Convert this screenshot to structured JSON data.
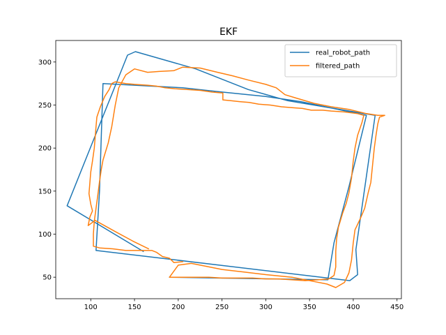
{
  "chart_data": {
    "type": "line",
    "title": "EKF",
    "xlabel": "",
    "ylabel": "",
    "xlim": [
      60,
      455
    ],
    "ylim": [
      25,
      325
    ],
    "xticks": [
      100,
      150,
      200,
      250,
      300,
      350,
      400,
      450
    ],
    "yticks": [
      50,
      100,
      150,
      200,
      250,
      300
    ],
    "grid": false,
    "legend_position": "top-right",
    "series": [
      {
        "name": "real_robot_path",
        "color": "#1f77b4",
        "points": [
          [
            160,
            80
          ],
          [
            73,
            133
          ],
          [
            142,
            308
          ],
          [
            151,
            312
          ],
          [
            220,
            292
          ],
          [
            280,
            268
          ],
          [
            325,
            255
          ],
          [
            425,
            238
          ],
          [
            403,
            82
          ],
          [
            405,
            53
          ],
          [
            396,
            46
          ],
          [
            106,
            81
          ],
          [
            110,
            150
          ],
          [
            114,
            275
          ],
          [
            205,
            270
          ],
          [
            251,
            265
          ],
          [
            300,
            260
          ],
          [
            340,
            254
          ],
          [
            415,
            238
          ],
          [
            395,
            155
          ],
          [
            378,
            90
          ],
          [
            371,
            47
          ],
          [
            190,
            50
          ]
        ]
      },
      {
        "name": "filtered_path",
        "color": "#ff7f0e",
        "points": [
          [
            166,
            83
          ],
          [
            148,
            92
          ],
          [
            128,
            103
          ],
          [
            105,
            116
          ],
          [
            97,
            110
          ],
          [
            99,
            120
          ],
          [
            102,
            127
          ],
          [
            100,
            135
          ],
          [
            98,
            147
          ],
          [
            99,
            160
          ],
          [
            100,
            172
          ],
          [
            102,
            185
          ],
          [
            104,
            200
          ],
          [
            105,
            212
          ],
          [
            106,
            225
          ],
          [
            107,
            236
          ],
          [
            111,
            248
          ],
          [
            116,
            260
          ],
          [
            121,
            268
          ],
          [
            124,
            275
          ],
          [
            128,
            277
          ],
          [
            140,
            275
          ],
          [
            150,
            274
          ],
          [
            165,
            273
          ],
          [
            175,
            272
          ],
          [
            185,
            270
          ],
          [
            196,
            269
          ],
          [
            210,
            268
          ],
          [
            225,
            267
          ],
          [
            239,
            265
          ],
          [
            251,
            264
          ],
          [
            251,
            256
          ],
          [
            260,
            255
          ],
          [
            270,
            254
          ],
          [
            281,
            253
          ],
          [
            292,
            251
          ],
          [
            305,
            250
          ],
          [
            318,
            248
          ],
          [
            330,
            247
          ],
          [
            342,
            246
          ],
          [
            352,
            244
          ],
          [
            365,
            244
          ],
          [
            375,
            243
          ],
          [
            390,
            242
          ],
          [
            405,
            240
          ],
          [
            412,
            238
          ],
          [
            410,
            230
          ],
          [
            405,
            215
          ],
          [
            402,
            200
          ],
          [
            400,
            185
          ],
          [
            398,
            165
          ],
          [
            395,
            148
          ],
          [
            392,
            136
          ],
          [
            388,
            125
          ],
          [
            383,
            108
          ],
          [
            381,
            95
          ],
          [
            380,
            80
          ],
          [
            380,
            62
          ],
          [
            378,
            52
          ],
          [
            372,
            48
          ],
          [
            360,
            47
          ],
          [
            345,
            46
          ],
          [
            330,
            47
          ],
          [
            315,
            48
          ],
          [
            300,
            48
          ],
          [
            285,
            49
          ],
          [
            268,
            49
          ],
          [
            250,
            49
          ],
          [
            235,
            50
          ],
          [
            220,
            50
          ],
          [
            205,
            50
          ],
          [
            190,
            50
          ],
          [
            200,
            64
          ],
          [
            215,
            66
          ],
          [
            230,
            63
          ],
          [
            250,
            59
          ],
          [
            275,
            56
          ],
          [
            300,
            53
          ],
          [
            330,
            50
          ],
          [
            355,
            45
          ],
          [
            370,
            42
          ],
          [
            380,
            38
          ],
          [
            390,
            44
          ],
          [
            395,
            55
          ],
          [
            398,
            70
          ],
          [
            400,
            90
          ],
          [
            402,
            105
          ],
          [
            408,
            118
          ],
          [
            413,
            130
          ],
          [
            417,
            148
          ],
          [
            420,
            160
          ],
          [
            422,
            180
          ],
          [
            424,
            200
          ],
          [
            426,
            215
          ],
          [
            428,
            228
          ],
          [
            430,
            236
          ],
          [
            436,
            238
          ],
          [
            428,
            238
          ],
          [
            415,
            240
          ],
          [
            395,
            245
          ],
          [
            375,
            248
          ],
          [
            355,
            252
          ],
          [
            335,
            258
          ],
          [
            322,
            262
          ],
          [
            312,
            270
          ],
          [
            300,
            274
          ],
          [
            280,
            279
          ],
          [
            262,
            284
          ],
          [
            245,
            288
          ],
          [
            225,
            293
          ],
          [
            205,
            294
          ],
          [
            195,
            290
          ],
          [
            178,
            289
          ],
          [
            165,
            288
          ],
          [
            150,
            292
          ],
          [
            140,
            285
          ],
          [
            132,
            270
          ],
          [
            128,
            250
          ],
          [
            124,
            225
          ],
          [
            120,
            206
          ],
          [
            114,
            186
          ],
          [
            112,
            175
          ],
          [
            110,
            161
          ],
          [
            108,
            145
          ],
          [
            106,
            130
          ],
          [
            104,
            115
          ],
          [
            103,
            100
          ],
          [
            103,
            86
          ],
          [
            110,
            84
          ],
          [
            125,
            83
          ],
          [
            140,
            81
          ],
          [
            160,
            81
          ],
          [
            170,
            81
          ],
          [
            175,
            79
          ],
          [
            182,
            74
          ],
          [
            190,
            72
          ],
          [
            195,
            67
          ],
          [
            205,
            68
          ]
        ]
      }
    ]
  }
}
